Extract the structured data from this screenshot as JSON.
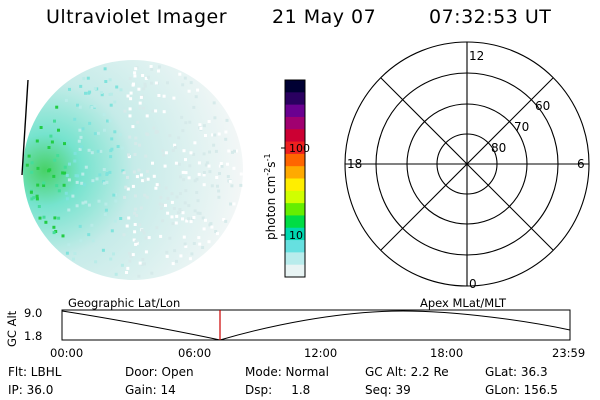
{
  "header": {
    "instrument": "Ultraviolet Imager",
    "date": "21 May 07",
    "time": "07:32:53 UT"
  },
  "colorbar": {
    "unit_label": "photon cm",
    "unit_exp1": "-2",
    "unit_s": "s",
    "unit_exp2": "-1",
    "ticks": [
      "100",
      "10"
    ],
    "scale": "log",
    "colors": [
      "#000033",
      "#2a0060",
      "#6a0090",
      "#a00070",
      "#cc0033",
      "#ee2020",
      "#ff6600",
      "#ffaa00",
      "#ffee00",
      "#d0ff00",
      "#66ee00",
      "#00dd44",
      "#00d8b0",
      "#66e0e0",
      "#b8ecec",
      "#e8f4f4"
    ]
  },
  "polar_plot": {
    "mlt_labels": {
      "top": "12",
      "left": "18",
      "right": "6",
      "bottom": "0"
    },
    "lat_labels": [
      "60",
      "70",
      "80"
    ]
  },
  "timeline": {
    "axis_label": "GC Alt",
    "y_ticks": [
      "9.0",
      "1.8"
    ],
    "left_label": "Geographic Lat/Lon",
    "right_label": "Apex MLat/MLT",
    "x_ticks": [
      "00:00",
      "06:00",
      "12:00",
      "18:00",
      "23:59"
    ],
    "marker_color": "#cc0000"
  },
  "info": {
    "row1": {
      "flt": "Flt: LBHL",
      "door": "Door: Open",
      "mode": "Mode: Normal",
      "gc_alt": "GC Alt: 2.2 Re",
      "glat": "GLat: 36.3"
    },
    "row2": {
      "ip": "IP: 36.0",
      "gain": "Gain: 14",
      "dsp": "Dsp:     1.8",
      "seq": "Seq: 39",
      "glon": "GLon: 156.5"
    }
  }
}
